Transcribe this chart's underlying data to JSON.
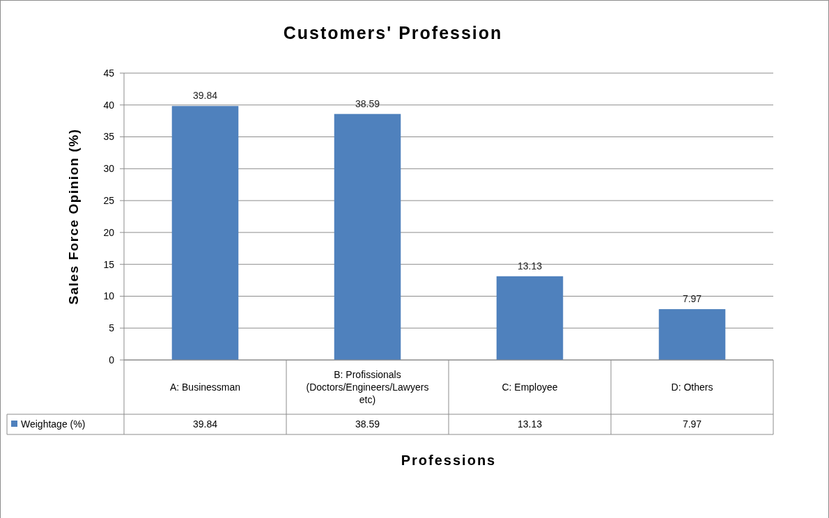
{
  "chart_data": {
    "type": "bar",
    "title": "Customers' Profession",
    "xlabel": "Professions",
    "ylabel": "Sales Force Opinion (%)",
    "categories": [
      "A: Businessman",
      "B: Profissionals (Doctors/Engineers/Lawyers etc)",
      "C: Employee",
      "D: Others"
    ],
    "series": [
      {
        "name": "Weightage (%)",
        "color": "#4f81bd",
        "values": [
          39.84,
          38.59,
          13.13,
          7.97
        ],
        "value_labels": [
          "39.84",
          "38.59",
          "13.13",
          "7.97"
        ]
      }
    ],
    "ylim": [
      0,
      45
    ],
    "yticks": [
      0,
      5,
      10,
      15,
      20,
      25,
      30,
      35,
      40,
      45
    ],
    "grid": "y",
    "annotations": [
      "39.84",
      "38.59",
      "13.13",
      "7.97"
    ],
    "legend": "bottom"
  }
}
